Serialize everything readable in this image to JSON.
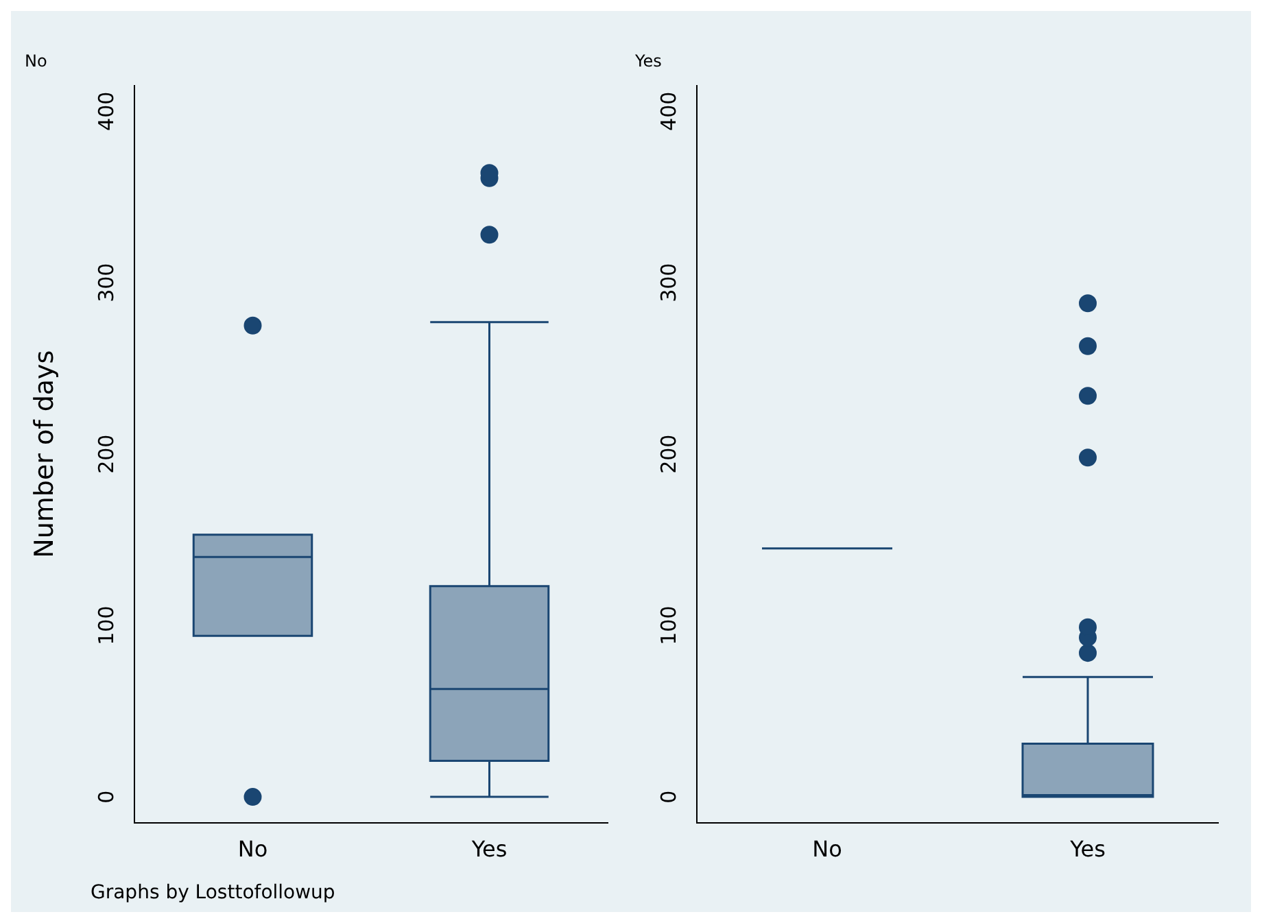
{
  "chart_data": [
    {
      "type": "box",
      "title": "No",
      "ylabel": "Number of days",
      "categories": [
        "No",
        "Yes"
      ],
      "color": "#1a4672",
      "ylim": [
        -15,
        415
      ],
      "yticks": [
        0,
        100,
        200,
        300,
        400
      ],
      "grid": false,
      "annotations": [
        "Graphs by Losttofollowup"
      ],
      "boxes": [
        {
          "low": 94,
          "q1": 94,
          "median": 140,
          "q3": 153,
          "high": 153,
          "outliers": [
            0,
            275
          ]
        },
        {
          "low": 0,
          "q1": 21,
          "median": 63,
          "q3": 123,
          "high": 277,
          "outliers": [
            328,
            361,
            364
          ]
        }
      ]
    },
    {
      "type": "box",
      "title": "Yes",
      "categories": [
        "No",
        "Yes"
      ],
      "color": "#1a4672",
      "ylim": [
        -15,
        415
      ],
      "yticks": [
        0,
        100,
        200,
        300,
        400
      ],
      "grid": false,
      "boxes": [
        {
          "low": 145,
          "q1": 145,
          "median": 145,
          "q3": 145,
          "high": 145
        },
        {
          "low": 0,
          "q1": 0,
          "median": 1,
          "q3": 31,
          "high": 70,
          "outliers": [
            84,
            93,
            99,
            198,
            234,
            263,
            288
          ]
        }
      ]
    }
  ]
}
